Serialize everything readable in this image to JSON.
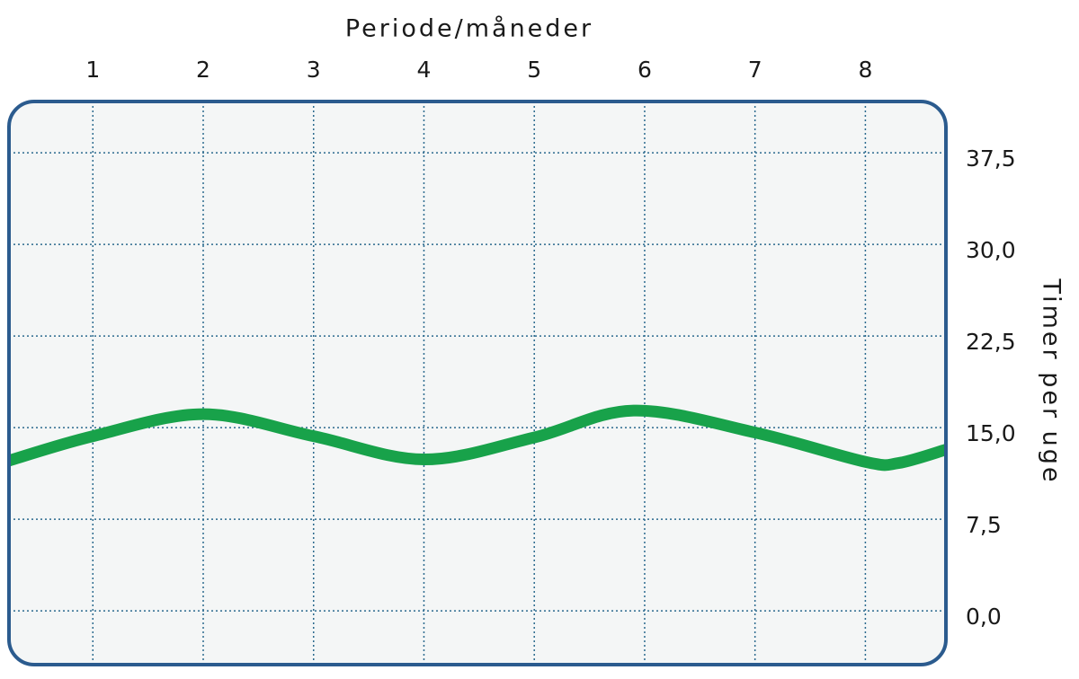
{
  "chart_data": {
    "type": "line",
    "x_label": "Periode/måneder",
    "y_label": "Timer per uge",
    "x": [
      0.24,
      1,
      2,
      3,
      4,
      5,
      5.9,
      7,
      8,
      8.3,
      8.73
    ],
    "series": [
      {
        "name": "Timer per uge",
        "color": "#18a24a",
        "values": [
          12.3,
          14.3,
          16.1,
          14.3,
          12.4,
          14.2,
          16.4,
          14.6,
          12.2,
          12.1,
          13.2
        ]
      }
    ],
    "xlim": [
      0.24,
      8.73
    ],
    "xticks": [
      1,
      2,
      3,
      4,
      5,
      6,
      7,
      8
    ],
    "ylim": [
      -4.4,
      41.7
    ],
    "yticks": [
      {
        "value": 0,
        "label": "0,0"
      },
      {
        "value": 7.5,
        "label": "7,5"
      },
      {
        "value": 15,
        "label": "15,0"
      },
      {
        "value": 22.5,
        "label": "22,5"
      },
      {
        "value": 30,
        "label": "30,0"
      },
      {
        "value": 37.5,
        "label": "37,5"
      }
    ],
    "grid": true
  }
}
